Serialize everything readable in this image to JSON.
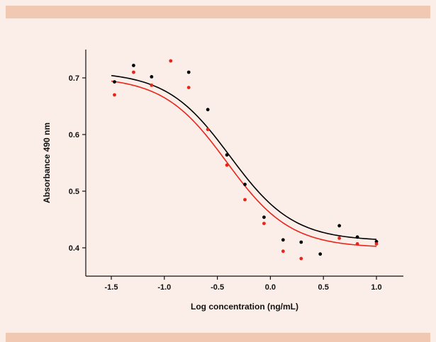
{
  "colors": {
    "background": "#fbeee8",
    "band": "#f1c9b3",
    "series_black": "#000000",
    "series_red": "#e8251a"
  },
  "chart_data": {
    "type": "scatter",
    "title": "",
    "xlabel": "Log concentration (ng/mL)",
    "ylabel": "Absorbance 490 nm",
    "xlim": [
      -1.7,
      1.2
    ],
    "ylim": [
      0.355,
      0.75
    ],
    "x_ticks": [
      -1.5,
      -1.0,
      -0.5,
      0.0,
      0.5,
      1.0
    ],
    "x_tick_labels": [
      "-1.5",
      "-1.0",
      "-0.5",
      "0.0",
      "0.5",
      "1.0"
    ],
    "y_ticks": [
      0.4,
      0.5,
      0.6,
      0.7
    ],
    "y_tick_labels": [
      "0.4",
      "0.5",
      "0.6",
      "0.7"
    ],
    "grid": false,
    "legend": "none",
    "series": [
      {
        "color": "#000000",
        "points": [
          {
            "x": -1.47,
            "y": 0.693
          },
          {
            "x": -1.29,
            "y": 0.722
          },
          {
            "x": -1.12,
            "y": 0.702
          },
          {
            "x": -0.77,
            "y": 0.71
          },
          {
            "x": -0.59,
            "y": 0.644
          },
          {
            "x": -0.41,
            "y": 0.564
          },
          {
            "x": -0.24,
            "y": 0.512
          },
          {
            "x": -0.06,
            "y": 0.454
          },
          {
            "x": 0.12,
            "y": 0.414
          },
          {
            "x": 0.29,
            "y": 0.41
          },
          {
            "x": 0.47,
            "y": 0.389
          },
          {
            "x": 0.65,
            "y": 0.439
          },
          {
            "x": 0.82,
            "y": 0.419
          },
          {
            "x": 1.0,
            "y": 0.411
          }
        ],
        "fit": {
          "top": 0.711,
          "bottom": 0.412,
          "logEC50": -0.38,
          "hill": 1.45
        }
      },
      {
        "color": "#e8251a",
        "points": [
          {
            "x": -1.47,
            "y": 0.67
          },
          {
            "x": -1.29,
            "y": 0.71
          },
          {
            "x": -1.12,
            "y": 0.687
          },
          {
            "x": -0.94,
            "y": 0.73
          },
          {
            "x": -0.77,
            "y": 0.683
          },
          {
            "x": -0.59,
            "y": 0.609
          },
          {
            "x": -0.41,
            "y": 0.546
          },
          {
            "x": -0.24,
            "y": 0.485
          },
          {
            "x": -0.06,
            "y": 0.443
          },
          {
            "x": 0.12,
            "y": 0.394
          },
          {
            "x": 0.29,
            "y": 0.381
          },
          {
            "x": 0.65,
            "y": 0.417
          },
          {
            "x": 0.82,
            "y": 0.407
          },
          {
            "x": 1.0,
            "y": 0.407
          }
        ],
        "fit": {
          "top": 0.702,
          "bottom": 0.4,
          "logEC50": -0.41,
          "hill": 1.45
        }
      }
    ]
  }
}
